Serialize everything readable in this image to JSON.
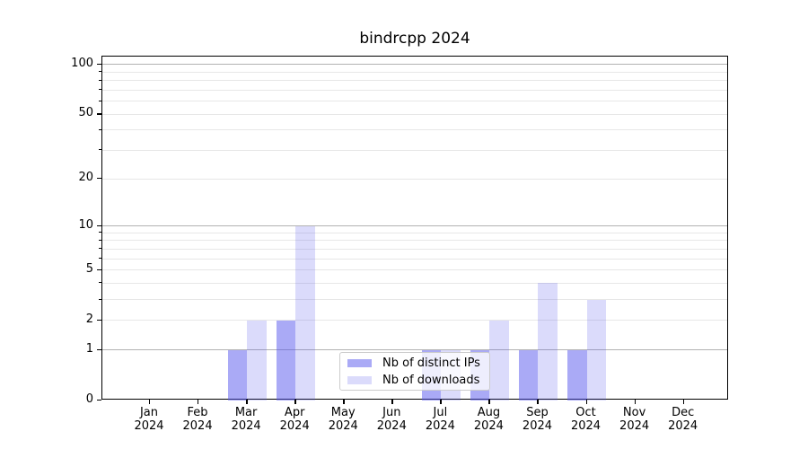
{
  "title": "bindrcpp 2024",
  "chart_data": {
    "type": "bar",
    "title": "bindrcpp 2024",
    "x": {
      "months": [
        "Jan",
        "Feb",
        "Mar",
        "Apr",
        "May",
        "Jun",
        "Jul",
        "Aug",
        "Sep",
        "Oct",
        "Nov",
        "Dec"
      ],
      "year": "2024"
    },
    "series": [
      {
        "name": "Nb of distinct IPs",
        "color": "rgba(85,85,238,0.5)",
        "values": [
          0,
          0,
          1,
          2,
          0,
          0,
          1,
          1,
          1,
          1,
          0,
          0
        ]
      },
      {
        "name": "Nb of downloads",
        "color": "rgba(85,85,238,0.21)",
        "values": [
          0,
          0,
          2,
          10,
          0,
          0,
          1,
          2,
          4,
          3,
          0,
          0
        ]
      }
    ],
    "y_axis": {
      "scale": "log1p",
      "tick_values": [
        0,
        1,
        2,
        5,
        10,
        20,
        50,
        100
      ],
      "tick_labels": [
        "0",
        "1",
        "2",
        "5",
        "10",
        "20",
        "50",
        "100"
      ],
      "major_grid_values": [
        1,
        10,
        100
      ],
      "minor_grid_values": [
        2,
        3,
        4,
        5,
        6,
        7,
        8,
        9,
        20,
        30,
        40,
        50,
        60,
        70,
        80,
        90
      ],
      "minor_tick_values": [
        3,
        4,
        6,
        7,
        8,
        9,
        30,
        40,
        60,
        70,
        80,
        90
      ],
      "ylim": [
        0,
        111
      ]
    },
    "legend": {
      "position": "lower center",
      "entries": [
        "Nb of distinct IPs",
        "Nb of downloads"
      ]
    },
    "grid": "both"
  },
  "colors": {
    "background": "#ffffff",
    "bar_distinct_ips": "rgba(85,85,238,0.5)",
    "bar_downloads": "rgba(85,85,238,0.21)",
    "grid_major": "#b2b2b2",
    "grid_minor": "#e7e7e7",
    "spine": "#000000",
    "text": "#000000",
    "legend_border": "#cccccc"
  }
}
